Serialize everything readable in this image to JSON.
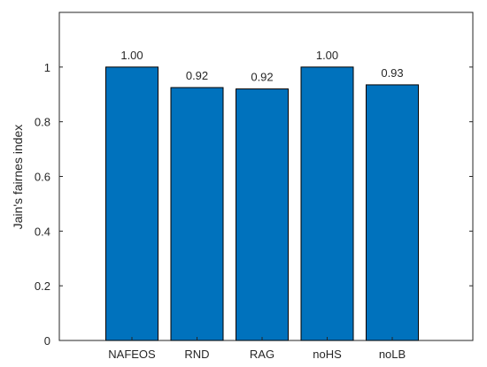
{
  "chart_data": {
    "type": "bar",
    "title": "",
    "xlabel": "",
    "ylabel": "Jain's fairnes index",
    "categories": [
      "NAFEOS",
      "RND",
      "RAG",
      "noHS",
      "noLB"
    ],
    "values": [
      1.0,
      0.925,
      0.92,
      1.0,
      0.935
    ],
    "value_labels": [
      "1.00",
      "0.92",
      "0.92",
      "1.00",
      "0.93"
    ],
    "ylim": [
      0,
      1.2
    ],
    "yticks": [
      0,
      0.2,
      0.4,
      0.6,
      0.8,
      1
    ],
    "ytick_labels": [
      "0",
      "0.2",
      "0.4",
      "0.6",
      "0.8",
      "1"
    ],
    "grid": false,
    "colors": {
      "bar": "#0072BD",
      "bar_edge": "#000000",
      "axis": "#262626"
    }
  }
}
